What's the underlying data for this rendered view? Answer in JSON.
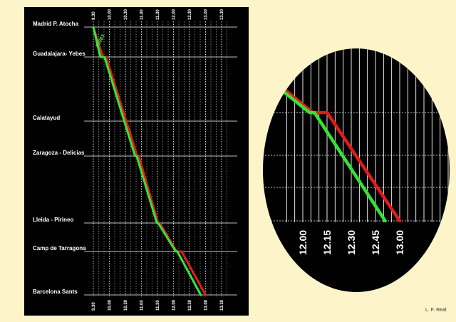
{
  "chart_data": {
    "type": "line",
    "stations": [
      "Madrid P. Atocha",
      "Guadalajara- Yebes",
      "Calatayud",
      "Zaragoza - Delicias",
      "Lleida - Pirineo",
      "Camp de Tarragona",
      "Barcelona Sants"
    ],
    "time_ticks": [
      "9.30",
      "10.00",
      "10.30",
      "11.00",
      "11.30",
      "12.00",
      "12.30",
      "13.00",
      "13.30"
    ],
    "x_range_hours": [
      9.5,
      13.75
    ],
    "series": [
      {
        "name": "",
        "color": "#e31b1b",
        "points": [
          {
            "time_h": 9.5,
            "station": 0
          },
          {
            "time_h": 9.8,
            "station": 1
          },
          {
            "time_h": 9.9,
            "station": 1
          },
          {
            "time_h": 10.87,
            "station": 3
          },
          {
            "time_h": 10.92,
            "station": 3
          },
          {
            "time_h": 11.52,
            "station": 4
          },
          {
            "time_h": 11.57,
            "station": 4
          },
          {
            "time_h": 12.1,
            "station": 5
          },
          {
            "time_h": 12.25,
            "station": 5
          },
          {
            "time_h": 13.0,
            "station": 6
          }
        ]
      },
      {
        "name": "03083",
        "color": "#33e633",
        "points": [
          {
            "time_h": 9.5,
            "station": 0
          },
          {
            "time_h": 9.72,
            "station": 1
          },
          {
            "time_h": 9.85,
            "station": 1
          },
          {
            "time_h": 10.8,
            "station": 3
          },
          {
            "time_h": 10.85,
            "station": 3
          },
          {
            "time_h": 11.48,
            "station": 4
          },
          {
            "time_h": 11.52,
            "station": 4
          },
          {
            "time_h": 12.07,
            "station": 5
          },
          {
            "time_h": 12.12,
            "station": 5
          },
          {
            "time_h": 12.85,
            "station": 6
          }
        ]
      }
    ],
    "zoom_inset": {
      "time_labels": [
        "12.00",
        "12.15",
        "12.30",
        "12.45",
        "13.00"
      ],
      "x_range_hours": [
        12.0,
        13.0
      ]
    },
    "credit": "L. F. Real"
  }
}
